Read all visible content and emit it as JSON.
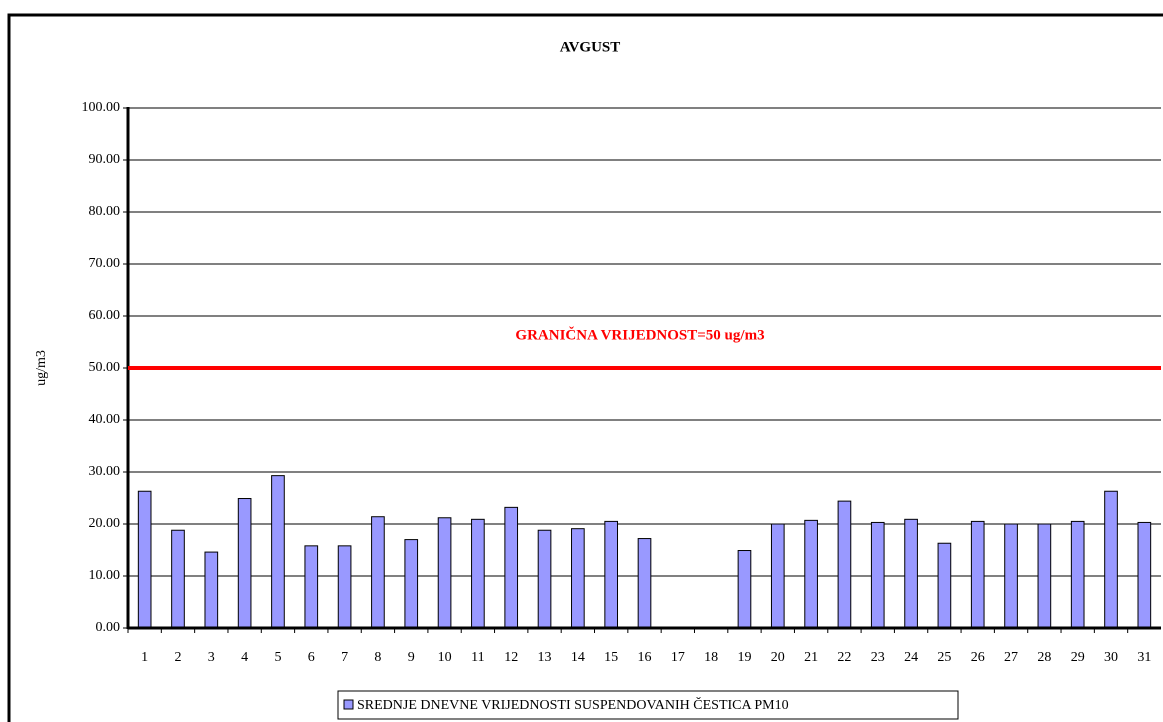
{
  "chart_data": {
    "type": "bar",
    "title": "AVGUST",
    "ylabel": "ug/m3",
    "categories": [
      "1",
      "2",
      "3",
      "4",
      "5",
      "6",
      "7",
      "8",
      "9",
      "10",
      "11",
      "12",
      "13",
      "14",
      "15",
      "16",
      "17",
      "18",
      "19",
      "20",
      "21",
      "22",
      "23",
      "24",
      "25",
      "26",
      "27",
      "28",
      "29",
      "30",
      "31"
    ],
    "series": [
      {
        "name": "SREDNJE DNEVNE VRIJEDNOSTI SUSPENDOVANIH ČESTICA PM10",
        "color": "#9999ff",
        "values": [
          26.3,
          18.8,
          14.6,
          24.9,
          29.3,
          15.8,
          15.8,
          21.4,
          17.0,
          21.2,
          20.9,
          23.2,
          18.8,
          19.1,
          20.5,
          17.2,
          null,
          null,
          14.9,
          20.0,
          20.7,
          24.4,
          20.3,
          20.9,
          16.3,
          20.5,
          20.0,
          20.0,
          20.5,
          26.3,
          20.3
        ]
      }
    ],
    "ylim": [
      0,
      100
    ],
    "yticks": [
      {
        "value": 0,
        "label": "0.00"
      },
      {
        "value": 10,
        "label": "10.00"
      },
      {
        "value": 20,
        "label": "20.00"
      },
      {
        "value": 30,
        "label": "30.00"
      },
      {
        "value": 40,
        "label": "40.00"
      },
      {
        "value": 50,
        "label": "50.00"
      },
      {
        "value": 60,
        "label": "60.00"
      },
      {
        "value": 70,
        "label": "70.00"
      },
      {
        "value": 80,
        "label": "80.00"
      },
      {
        "value": 90,
        "label": "90.00"
      },
      {
        "value": 100,
        "label": "100.00"
      }
    ],
    "grid": true,
    "reference_line": {
      "value": 50,
      "color": "#ff0000",
      "label": "GRANIČNA VRIJEDNOST=50 ug/m3"
    },
    "legend": "bottom"
  }
}
